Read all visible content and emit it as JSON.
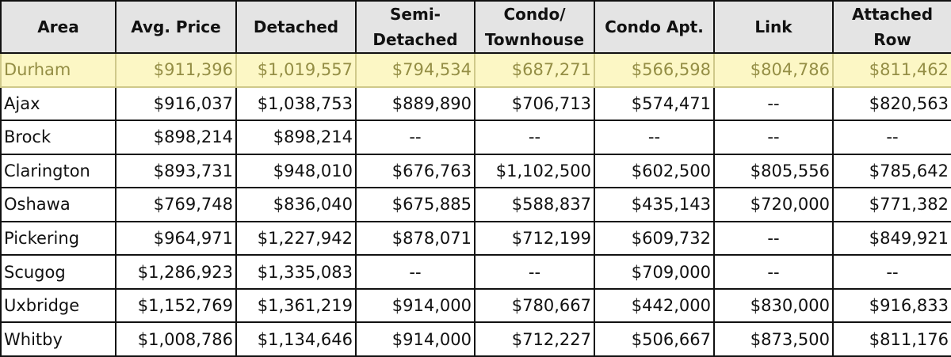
{
  "table": {
    "header": [
      "Area",
      "Avg. Price",
      "Detached",
      "Semi-\nDetached",
      "Condo/\nTownhouse",
      "Condo Apt.",
      "Link",
      "Attached\nRow"
    ],
    "rows": [
      [
        "Durham",
        "$911,396",
        "$1,019,557",
        "$794,534",
        "$687,271",
        "$566,598",
        "$804,786",
        "$811,462"
      ],
      [
        "Ajax",
        "$916,037",
        "$1,038,753",
        "$889,890",
        "$706,713",
        "$574,471",
        "--",
        "$820,563"
      ],
      [
        "Brock",
        "$898,214",
        "$898,214",
        "--",
        "--",
        "--",
        "--",
        "--"
      ],
      [
        "Clarington",
        "$893,731",
        "$948,010",
        "$676,763",
        "$1,102,500",
        "$602,500",
        "$805,556",
        "$785,642"
      ],
      [
        "Oshawa",
        "$769,748",
        "$836,040",
        "$675,885",
        "$588,837",
        "$435,143",
        "$720,000",
        "$771,382"
      ],
      [
        "Pickering",
        "$964,971",
        "$1,227,942",
        "$878,071",
        "$712,199",
        "$609,732",
        "--",
        "$849,921"
      ],
      [
        "Scugog",
        "$1,286,923",
        "$1,335,083",
        "--",
        "--",
        "$709,000",
        "--",
        "--"
      ],
      [
        "Uxbridge",
        "$1,152,769",
        "$1,361,219",
        "$914,000",
        "$780,667",
        "$442,000",
        "$830,000",
        "$916,833"
      ],
      [
        "Whitby",
        "$1,008,786",
        "$1,134,646",
        "$914,000",
        "$712,227",
        "$506,667",
        "$873,500",
        "$811,176"
      ]
    ]
  }
}
